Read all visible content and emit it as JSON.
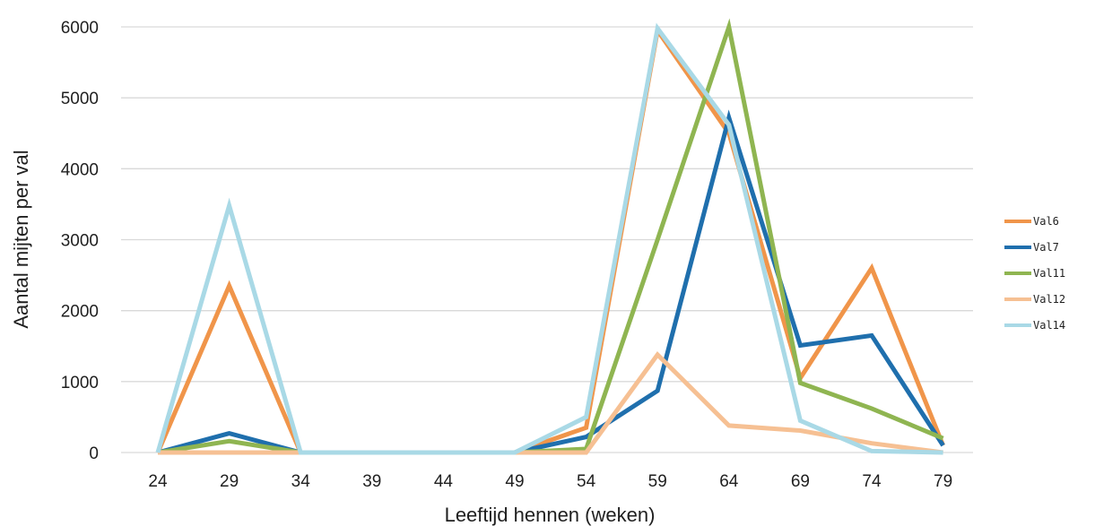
{
  "chart_data": {
    "type": "line",
    "title": "",
    "xlabel": "Leeftijd hennen (weken)",
    "ylabel": "Aantal mijten per val",
    "categories": [
      "24",
      "29",
      "34",
      "39",
      "44",
      "49",
      "54",
      "59",
      "64",
      "69",
      "74",
      "79"
    ],
    "ylim": [
      0,
      6000
    ],
    "yticks": [
      0,
      1000,
      2000,
      3000,
      4000,
      5000,
      6000
    ],
    "grid": true,
    "legend_position": "right",
    "series": [
      {
        "name": "Val6",
        "color": "#f0954a",
        "values": [
          0,
          2350,
          0,
          0,
          0,
          0,
          350,
          5950,
          4500,
          1050,
          2600,
          100
        ]
      },
      {
        "name": "Val7",
        "color": "#1f6fad",
        "values": [
          0,
          270,
          0,
          0,
          0,
          0,
          220,
          870,
          4720,
          1510,
          1650,
          100
        ]
      },
      {
        "name": "Val11",
        "color": "#8fb551",
        "values": [
          0,
          160,
          0,
          0,
          0,
          0,
          50,
          3000,
          6000,
          980,
          620,
          200
        ]
      },
      {
        "name": "Val12",
        "color": "#f6c093",
        "values": [
          0,
          0,
          0,
          0,
          0,
          0,
          0,
          1380,
          380,
          310,
          130,
          0
        ]
      },
      {
        "name": "Val14",
        "color": "#a9d9e6",
        "values": [
          0,
          3480,
          0,
          0,
          0,
          0,
          500,
          5980,
          4620,
          450,
          20,
          0
        ]
      }
    ]
  }
}
